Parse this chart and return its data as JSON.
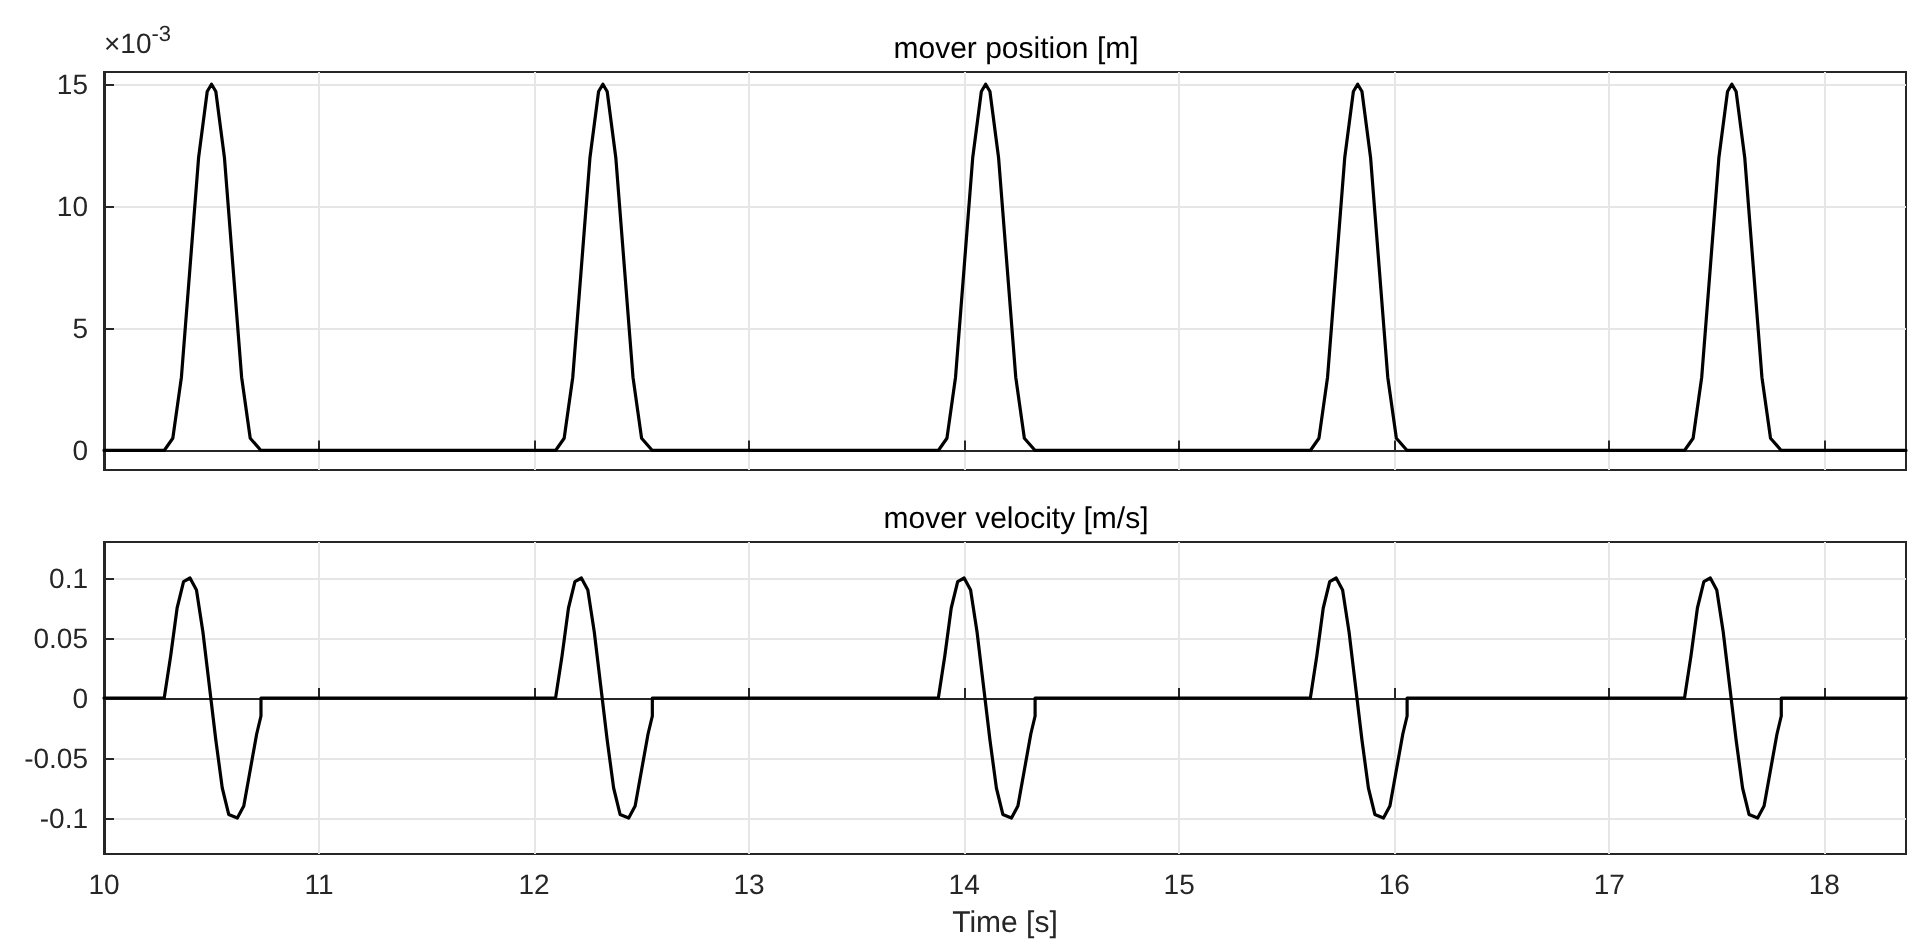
{
  "chart_data": [
    {
      "type": "line",
      "title": "mover position [m]",
      "annotations": [
        "×10$^{-3}$"
      ],
      "color": "#000000",
      "marker": "none",
      "line_style": "solid",
      "grid": true,
      "tick_labels": "y",
      "x": [
        10,
        10.28,
        10.32,
        10.36,
        10.4,
        10.44,
        10.48,
        10.5,
        10.52,
        10.56,
        10.6,
        10.64,
        10.68,
        10.73,
        12.1,
        12.14,
        12.18,
        12.22,
        12.26,
        12.3,
        12.32,
        12.34,
        12.38,
        12.42,
        12.46,
        12.5,
        12.55,
        13.88,
        13.92,
        13.96,
        14.0,
        14.04,
        14.08,
        14.1,
        14.12,
        14.16,
        14.2,
        14.24,
        14.28,
        14.33,
        15.61,
        15.65,
        15.69,
        15.73,
        15.77,
        15.81,
        15.83,
        15.85,
        15.89,
        15.93,
        15.97,
        16.01,
        16.06,
        17.35,
        17.39,
        17.43,
        17.47,
        17.51,
        17.55,
        17.57,
        17.59,
        17.63,
        17.67,
        17.71,
        17.75,
        17.8,
        18.38
      ],
      "values": [
        0,
        0,
        0.5,
        3,
        7.5,
        12,
        14.7,
        15,
        14.7,
        12,
        7.5,
        3,
        0.5,
        0,
        0,
        0.5,
        3,
        7.5,
        12,
        14.7,
        15,
        14.7,
        12,
        7.5,
        3,
        0.5,
        0,
        0,
        0.5,
        3,
        7.5,
        12,
        14.7,
        15,
        14.7,
        12,
        7.5,
        3,
        0.5,
        0,
        0,
        0.5,
        3,
        7.5,
        12,
        14.7,
        15,
        14.7,
        12,
        7.5,
        3,
        0.5,
        0,
        0,
        0.5,
        3,
        7.5,
        12,
        14.7,
        15,
        14.7,
        12,
        7.5,
        3,
        0.5,
        0,
        0
      ],
      "xlim": [
        10,
        18.38
      ],
      "xticks": [
        10,
        11,
        12,
        13,
        14,
        15,
        16,
        17,
        18
      ],
      "ylim": [
        -0.8,
        15.5
      ],
      "yticks": [
        0,
        5,
        10,
        15
      ]
    },
    {
      "type": "line",
      "title": "mover velocity [m/s]",
      "xlabel": "Time [s]",
      "color": "#000000",
      "marker": "none",
      "line_style": "solid",
      "grid": true,
      "x": [
        10,
        10.28,
        10.31,
        10.34,
        10.37,
        10.4,
        10.43,
        10.46,
        10.49,
        10.52,
        10.55,
        10.58,
        10.62,
        10.65,
        10.68,
        10.71,
        10.73,
        10.73,
        12.1,
        12.13,
        12.16,
        12.19,
        12.22,
        12.25,
        12.28,
        12.31,
        12.34,
        12.37,
        12.4,
        12.44,
        12.47,
        12.5,
        12.53,
        12.55,
        12.55,
        13.88,
        13.91,
        13.94,
        13.97,
        14.0,
        14.03,
        14.06,
        14.09,
        14.12,
        14.15,
        14.18,
        14.22,
        14.25,
        14.28,
        14.31,
        14.33,
        14.33,
        15.61,
        15.64,
        15.67,
        15.7,
        15.73,
        15.76,
        15.79,
        15.82,
        15.85,
        15.88,
        15.91,
        15.95,
        15.98,
        16.01,
        16.04,
        16.06,
        16.06,
        17.35,
        17.38,
        17.41,
        17.44,
        17.47,
        17.5,
        17.53,
        17.56,
        17.59,
        17.62,
        17.65,
        17.69,
        17.72,
        17.75,
        17.78,
        17.8,
        17.8,
        18.38
      ],
      "values": [
        0,
        0,
        0.035,
        0.075,
        0.097,
        0.1,
        0.09,
        0.055,
        0.01,
        -0.035,
        -0.075,
        -0.097,
        -0.1,
        -0.09,
        -0.06,
        -0.03,
        -0.015,
        0,
        0,
        0.035,
        0.075,
        0.097,
        0.1,
        0.09,
        0.055,
        0.01,
        -0.035,
        -0.075,
        -0.097,
        -0.1,
        -0.09,
        -0.06,
        -0.03,
        -0.015,
        0,
        0,
        0.035,
        0.075,
        0.097,
        0.1,
        0.09,
        0.055,
        0.01,
        -0.035,
        -0.075,
        -0.097,
        -0.1,
        -0.09,
        -0.06,
        -0.03,
        -0.015,
        0,
        0,
        0.035,
        0.075,
        0.097,
        0.1,
        0.09,
        0.055,
        0.01,
        -0.035,
        -0.075,
        -0.097,
        -0.1,
        -0.09,
        -0.06,
        -0.03,
        -0.015,
        0,
        0,
        0.035,
        0.075,
        0.097,
        0.1,
        0.09,
        0.055,
        0.01,
        -0.035,
        -0.075,
        -0.097,
        -0.1,
        -0.09,
        -0.06,
        -0.03,
        -0.015,
        0,
        0
      ],
      "xlim": [
        10,
        18.38
      ],
      "xticks": [
        10,
        11,
        12,
        13,
        14,
        15,
        16,
        17,
        18
      ],
      "ylim": [
        -0.13,
        0.13
      ],
      "yticks": [
        -0.1,
        -0.05,
        0,
        0.05,
        0.1
      ]
    }
  ]
}
